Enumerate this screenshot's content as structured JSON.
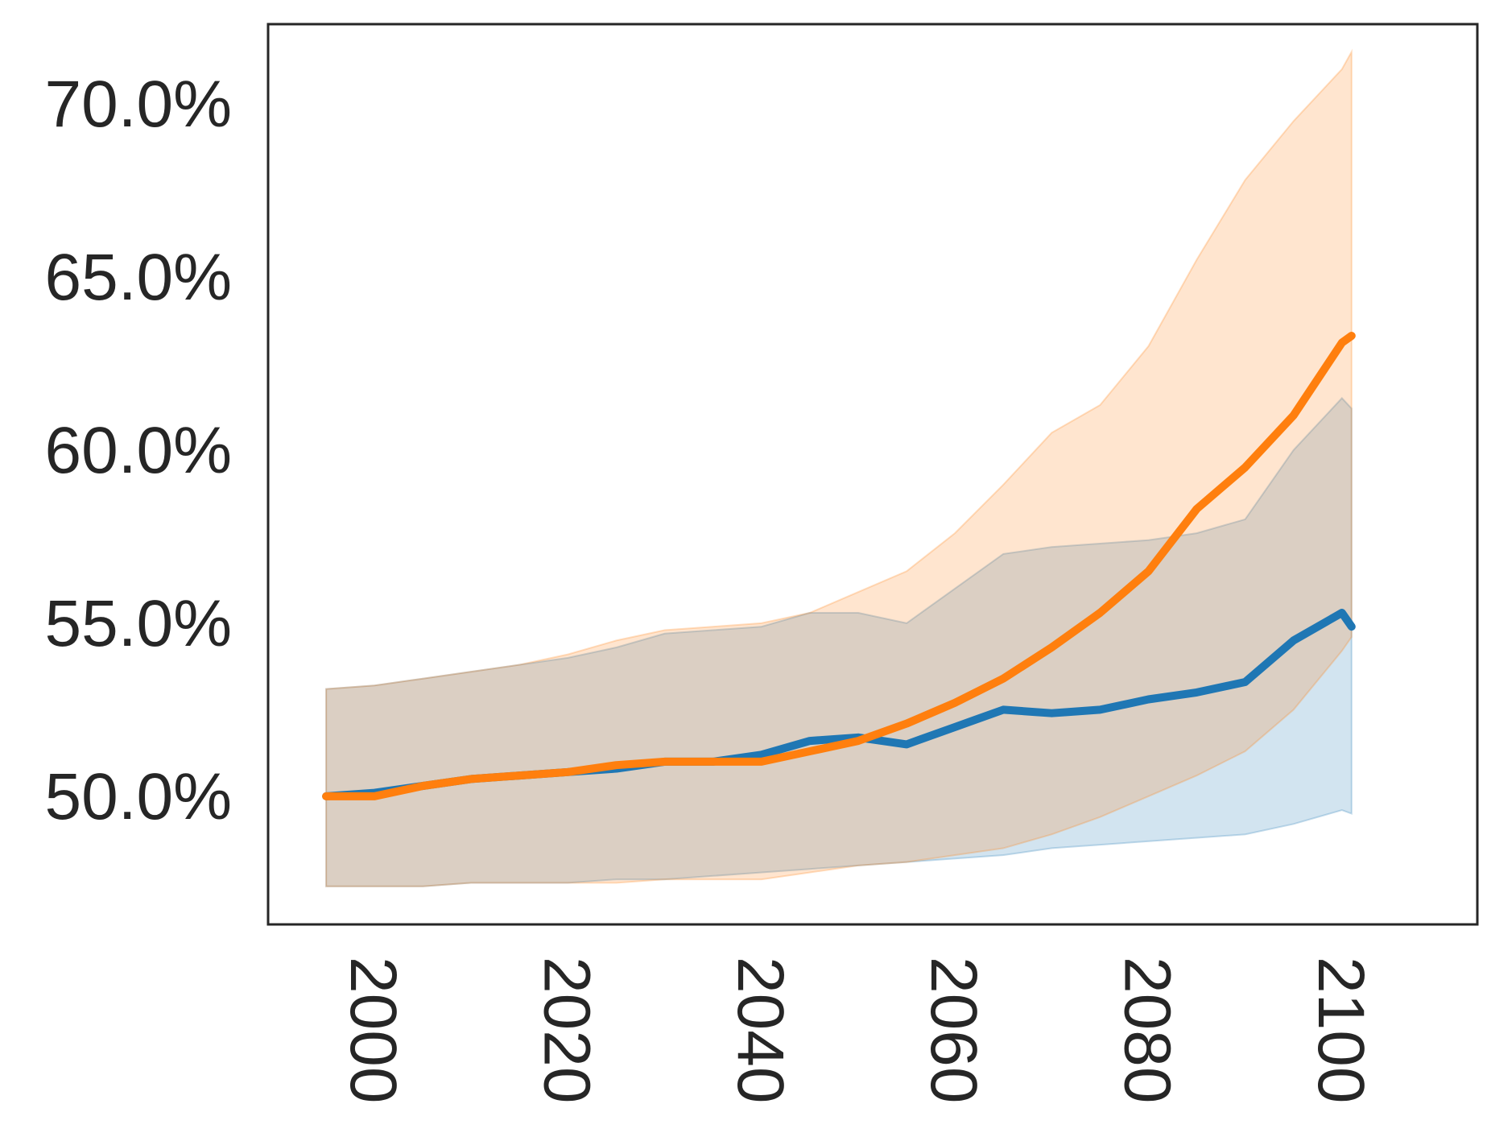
{
  "chart_data": {
    "type": "line",
    "title": "",
    "xlabel": "",
    "ylabel": "",
    "xlim": [
      1989,
      2114
    ],
    "ylim": [
      46.3,
      72.3
    ],
    "grid": false,
    "legend": "none",
    "x_ticks": [
      {
        "value": 2000,
        "label": "2000"
      },
      {
        "value": 2020,
        "label": "2020"
      },
      {
        "value": 2040,
        "label": "2040"
      },
      {
        "value": 2060,
        "label": "2060"
      },
      {
        "value": 2080,
        "label": "2080"
      },
      {
        "value": 2100,
        "label": "2100"
      }
    ],
    "y_ticks": [
      {
        "value": 50,
        "label": "50.0%"
      },
      {
        "value": 55,
        "label": "55.0%"
      },
      {
        "value": 60,
        "label": "60.0%"
      },
      {
        "value": 65,
        "label": "65.0%"
      },
      {
        "value": 70,
        "label": "70.0%"
      }
    ],
    "series": [
      {
        "color": "#1f77b4",
        "band_color": "#1f77b4",
        "x": [
          1995,
          2000,
          2005,
          2010,
          2015,
          2020,
          2025,
          2030,
          2035,
          2040,
          2045,
          2050,
          2055,
          2060,
          2065,
          2070,
          2075,
          2080,
          2085,
          2090,
          2095,
          2100,
          2101
        ],
        "y": [
          50.0,
          50.1,
          50.3,
          50.5,
          50.6,
          50.7,
          50.8,
          51.0,
          51.0,
          51.2,
          51.6,
          51.7,
          51.5,
          52.0,
          52.5,
          52.4,
          52.5,
          52.8,
          53.0,
          53.3,
          54.5,
          55.3,
          54.9
        ],
        "lower": [
          47.4,
          47.4,
          47.4,
          47.5,
          47.5,
          47.5,
          47.6,
          47.6,
          47.7,
          47.8,
          47.9,
          48.0,
          48.1,
          48.2,
          48.3,
          48.5,
          48.6,
          48.7,
          48.8,
          48.9,
          49.2,
          49.6,
          49.5
        ],
        "upper": [
          53.1,
          53.2,
          53.4,
          53.6,
          53.8,
          54.0,
          54.3,
          54.7,
          54.8,
          54.9,
          55.3,
          55.3,
          55.0,
          56.0,
          57.0,
          57.2,
          57.3,
          57.4,
          57.6,
          58.0,
          60.0,
          61.5,
          61.2
        ]
      },
      {
        "color": "#ff7f0e",
        "band_color": "#ff7f0e",
        "x": [
          1995,
          2000,
          2005,
          2010,
          2015,
          2020,
          2025,
          2030,
          2035,
          2040,
          2045,
          2050,
          2055,
          2060,
          2065,
          2070,
          2075,
          2080,
          2085,
          2090,
          2095,
          2100,
          2101
        ],
        "y": [
          50.0,
          50.0,
          50.3,
          50.5,
          50.6,
          50.7,
          50.9,
          51.0,
          51.0,
          51.0,
          51.3,
          51.6,
          52.1,
          52.7,
          53.4,
          54.3,
          55.3,
          56.5,
          58.3,
          59.5,
          61.0,
          63.1,
          63.3
        ],
        "lower": [
          47.4,
          47.4,
          47.4,
          47.5,
          47.5,
          47.5,
          47.5,
          47.6,
          47.6,
          47.6,
          47.8,
          48.0,
          48.1,
          48.3,
          48.5,
          48.9,
          49.4,
          50.0,
          50.6,
          51.3,
          52.5,
          54.2,
          54.6
        ],
        "upper": [
          53.1,
          53.2,
          53.4,
          53.6,
          53.8,
          54.1,
          54.5,
          54.8,
          54.9,
          55.0,
          55.3,
          55.9,
          56.5,
          57.6,
          59.0,
          60.5,
          61.3,
          63.0,
          65.5,
          67.8,
          69.5,
          71.0,
          71.5
        ]
      }
    ]
  }
}
